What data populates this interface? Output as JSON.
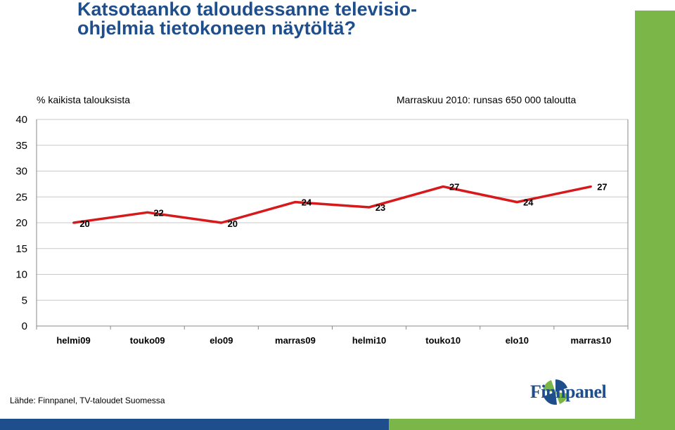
{
  "title_line1": "Katsotaanko taloudessanne televisio-",
  "title_line2": "ohjelmia tietokoneen näytöltä?",
  "subtitle_left": "% kaikista talouksista",
  "subtitle_right": "Marraskuu 2010: runsas 650 000 taloutta",
  "source": "Lähde: Finnpanel, TV-taloudet Suomessa",
  "logo_text": "Finnpanel",
  "colors": {
    "title": "#1f4e8c",
    "line": "#d7191c",
    "brand_blue": "#1f4e8c",
    "brand_green": "#7ab648"
  },
  "chart_data": {
    "type": "line",
    "categories": [
      "helmi09",
      "touko09",
      "elo09",
      "marras09",
      "helmi10",
      "touko10",
      "elo10",
      "marras10"
    ],
    "series": [
      {
        "values": [
          20,
          22,
          20,
          24,
          23,
          27,
          24,
          27
        ]
      }
    ],
    "ylim": [
      0,
      40
    ],
    "yticks": [
      0,
      5,
      10,
      15,
      20,
      25,
      30,
      35,
      40
    ],
    "grid": true
  }
}
